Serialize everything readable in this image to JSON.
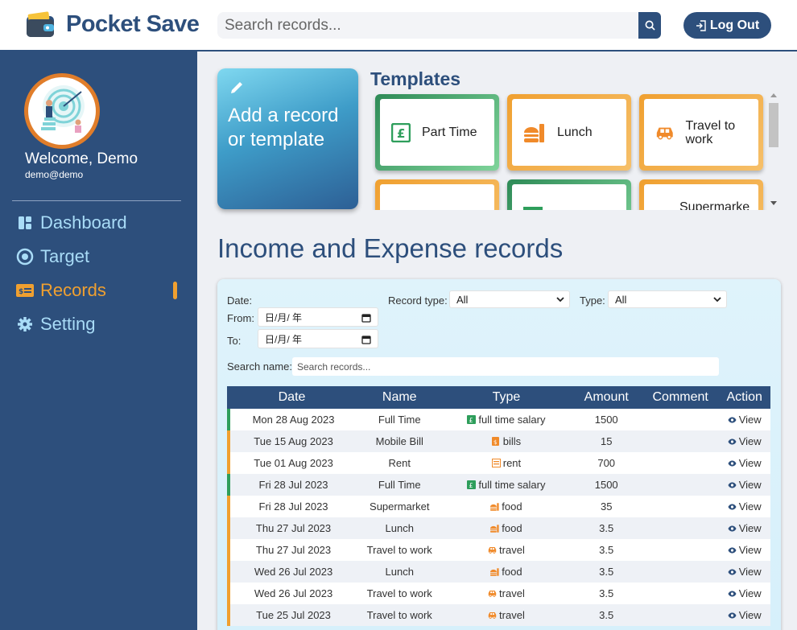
{
  "header": {
    "brand": "Pocket Save",
    "search_placeholder": "Search records...",
    "logout_label": "Log Out"
  },
  "sidebar": {
    "welcome": "Welcome, Demo",
    "email": "demo@demo",
    "items": [
      {
        "label": "Dashboard",
        "icon": "dashboard-icon",
        "active": false
      },
      {
        "label": "Target",
        "icon": "target-icon",
        "active": false
      },
      {
        "label": "Records",
        "icon": "records-icon",
        "active": true
      },
      {
        "label": "Setting",
        "icon": "gear-icon",
        "active": false
      }
    ]
  },
  "add_card": {
    "label": "Add a record or template"
  },
  "templates": {
    "title": "Templates",
    "items": [
      {
        "label": "Part Time",
        "color": "green",
        "icon": "pound-note-icon"
      },
      {
        "label": "Lunch",
        "color": "orange",
        "icon": "food-icon"
      },
      {
        "label": "Travel to work",
        "color": "orange",
        "icon": "car-icon"
      },
      {
        "label": "",
        "color": "orange",
        "icon": ""
      },
      {
        "label": "",
        "color": "green",
        "icon": ""
      },
      {
        "label": "Supermarke",
        "color": "orange",
        "icon": ""
      }
    ]
  },
  "records": {
    "title": "Income and Expense records",
    "filters": {
      "date_label": "Date:",
      "from_label": "From:",
      "to_label": "To:",
      "date_placeholder": "日/月/ 年",
      "record_type_label": "Record type:",
      "record_type_value": "All",
      "type_label": "Type:",
      "type_value": "All",
      "search_name_label": "Search name:",
      "search_name_placeholder": "Search records..."
    },
    "columns": [
      "Date",
      "Name",
      "Type",
      "Amount",
      "Comment",
      "Action"
    ],
    "action_label": "View",
    "rows": [
      {
        "date": "Mon 28 Aug 2023",
        "name": "Full Time",
        "type": "full time salary",
        "type_icon": "pound-note-icon",
        "amount": "1500",
        "comment": "",
        "kind": "income"
      },
      {
        "date": "Tue 15 Aug 2023",
        "name": "Mobile Bill",
        "type": "bills",
        "type_icon": "bill-icon",
        "amount": "15",
        "comment": "",
        "kind": "expense"
      },
      {
        "date": "Tue 01 Aug 2023",
        "name": "Rent",
        "type": "rent",
        "type_icon": "rent-icon",
        "amount": "700",
        "comment": "",
        "kind": "expense"
      },
      {
        "date": "Fri 28 Jul 2023",
        "name": "Full Time",
        "type": "full time salary",
        "type_icon": "pound-note-icon",
        "amount": "1500",
        "comment": "",
        "kind": "income"
      },
      {
        "date": "Fri 28 Jul 2023",
        "name": "Supermarket",
        "type": "food",
        "type_icon": "food-icon",
        "amount": "35",
        "comment": "",
        "kind": "expense"
      },
      {
        "date": "Thu 27 Jul 2023",
        "name": "Lunch",
        "type": "food",
        "type_icon": "food-icon",
        "amount": "3.5",
        "comment": "",
        "kind": "expense"
      },
      {
        "date": "Thu 27 Jul 2023",
        "name": "Travel to work",
        "type": "travel",
        "type_icon": "car-icon",
        "amount": "3.5",
        "comment": "",
        "kind": "expense"
      },
      {
        "date": "Wed 26 Jul 2023",
        "name": "Lunch",
        "type": "food",
        "type_icon": "food-icon",
        "amount": "3.5",
        "comment": "",
        "kind": "expense"
      },
      {
        "date": "Wed 26 Jul 2023",
        "name": "Travel to work",
        "type": "travel",
        "type_icon": "car-icon",
        "amount": "3.5",
        "comment": "",
        "kind": "expense"
      },
      {
        "date": "Tue 25 Jul 2023",
        "name": "Travel to work",
        "type": "travel",
        "type_icon": "car-icon",
        "amount": "3.5",
        "comment": "",
        "kind": "expense"
      }
    ]
  },
  "colors": {
    "primary": "#2d4f7c",
    "accent": "#f0a030",
    "income": "#2e9e5b",
    "nav_text": "#a9dcf7"
  }
}
